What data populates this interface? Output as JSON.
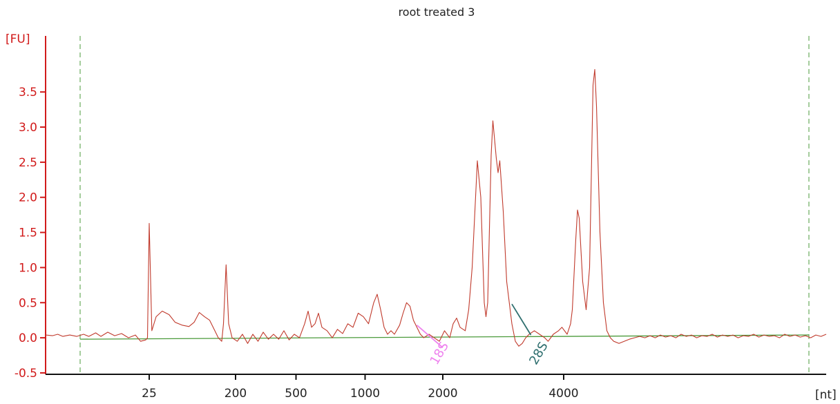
{
  "chart_data": {
    "type": "line",
    "title": "root treated 3",
    "ylabel": "[FU]",
    "xlabel": "[nt]",
    "ylim": [
      -0.52,
      4.2
    ],
    "yticks": [
      "-0.5",
      "0.0",
      "0.5",
      "1.0",
      "1.5",
      "2.0",
      "2.5",
      "3.0",
      "3.5"
    ],
    "xticks": [
      "25",
      "200",
      "500",
      "1000",
      "2000",
      "4000"
    ],
    "grid": false,
    "colors": {
      "trace": "#c0392b",
      "yaxis": "#d11a1a",
      "baseline": "#4a9a3a",
      "marker_lines": "#4a9a3a",
      "label_18s": "#ee82ee",
      "label_28s": "#2f6f6f"
    },
    "series": [
      {
        "values": [
          [
            0,
            0.04
          ],
          [
            8,
            0.03
          ],
          [
            14,
            0.05
          ],
          [
            20,
            0.02
          ],
          [
            28,
            0.04
          ],
          [
            36,
            0.02
          ],
          [
            44,
            0.05
          ],
          [
            50,
            0.02
          ],
          [
            58,
            0.07
          ],
          [
            64,
            0.02
          ],
          [
            72,
            0.08
          ],
          [
            80,
            0.03
          ],
          [
            88,
            0.06
          ],
          [
            96,
            0.0
          ],
          [
            104,
            0.04
          ],
          [
            110,
            -0.05
          ],
          [
            116,
            -0.03
          ],
          [
            118,
            0.0
          ],
          [
            120,
            1.63
          ],
          [
            123,
            0.1
          ],
          [
            128,
            0.3
          ],
          [
            135,
            0.38
          ],
          [
            143,
            0.33
          ],
          [
            150,
            0.22
          ],
          [
            158,
            0.18
          ],
          [
            166,
            0.16
          ],
          [
            172,
            0.22
          ],
          [
            178,
            0.36
          ],
          [
            184,
            0.3
          ],
          [
            190,
            0.25
          ],
          [
            196,
            0.1
          ],
          [
            200,
            0.0
          ],
          [
            204,
            -0.05
          ],
          [
            206,
            0.2
          ],
          [
            209,
            1.04
          ],
          [
            212,
            0.2
          ],
          [
            216,
            0.0
          ],
          [
            222,
            -0.05
          ],
          [
            228,
            0.05
          ],
          [
            234,
            -0.08
          ],
          [
            240,
            0.05
          ],
          [
            246,
            -0.05
          ],
          [
            252,
            0.08
          ],
          [
            258,
            -0.02
          ],
          [
            264,
            0.05
          ],
          [
            270,
            -0.02
          ],
          [
            276,
            0.1
          ],
          [
            282,
            -0.03
          ],
          [
            288,
            0.05
          ],
          [
            294,
            0.0
          ],
          [
            300,
            0.2
          ],
          [
            304,
            0.38
          ],
          [
            308,
            0.15
          ],
          [
            312,
            0.2
          ],
          [
            316,
            0.35
          ],
          [
            320,
            0.15
          ],
          [
            326,
            0.1
          ],
          [
            332,
            0.0
          ],
          [
            338,
            0.12
          ],
          [
            344,
            0.06
          ],
          [
            350,
            0.2
          ],
          [
            356,
            0.15
          ],
          [
            362,
            0.35
          ],
          [
            368,
            0.3
          ],
          [
            374,
            0.2
          ],
          [
            380,
            0.5
          ],
          [
            384,
            0.62
          ],
          [
            388,
            0.4
          ],
          [
            392,
            0.15
          ],
          [
            396,
            0.05
          ],
          [
            400,
            0.1
          ],
          [
            404,
            0.05
          ],
          [
            410,
            0.18
          ],
          [
            414,
            0.35
          ],
          [
            418,
            0.5
          ],
          [
            422,
            0.45
          ],
          [
            426,
            0.25
          ],
          [
            430,
            0.15
          ],
          [
            434,
            0.05
          ],
          [
            438,
            0.0
          ],
          [
            444,
            0.05
          ],
          [
            450,
            0.0
          ],
          [
            456,
            -0.05
          ],
          [
            462,
            0.1
          ],
          [
            468,
            0.0
          ],
          [
            472,
            0.2
          ],
          [
            476,
            0.28
          ],
          [
            480,
            0.15
          ],
          [
            486,
            0.1
          ],
          [
            490,
            0.4
          ],
          [
            494,
            1.0
          ],
          [
            500,
            2.52
          ],
          [
            504,
            2.0
          ],
          [
            508,
            0.5
          ],
          [
            510,
            0.3
          ],
          [
            512,
            0.5
          ],
          [
            516,
            2.6
          ],
          [
            518,
            3.09
          ],
          [
            522,
            2.55
          ],
          [
            524,
            2.35
          ],
          [
            526,
            2.52
          ],
          [
            530,
            1.8
          ],
          [
            534,
            0.8
          ],
          [
            540,
            0.2
          ],
          [
            544,
            -0.05
          ],
          [
            548,
            -0.12
          ],
          [
            552,
            -0.08
          ],
          [
            556,
            0.0
          ],
          [
            560,
            0.05
          ],
          [
            566,
            0.1
          ],
          [
            572,
            0.05
          ],
          [
            578,
            0.0
          ],
          [
            582,
            -0.05
          ],
          [
            588,
            0.05
          ],
          [
            594,
            0.1
          ],
          [
            598,
            0.15
          ],
          [
            604,
            0.05
          ],
          [
            608,
            0.2
          ],
          [
            610,
            0.4
          ],
          [
            614,
            1.4
          ],
          [
            616,
            1.82
          ],
          [
            618,
            1.7
          ],
          [
            622,
            0.8
          ],
          [
            626,
            0.4
          ],
          [
            630,
            1.0
          ],
          [
            634,
            3.6
          ],
          [
            636,
            3.82
          ],
          [
            638,
            3.3
          ],
          [
            642,
            1.5
          ],
          [
            646,
            0.5
          ],
          [
            650,
            0.1
          ],
          [
            654,
            0.0
          ],
          [
            658,
            -0.05
          ],
          [
            664,
            -0.08
          ],
          [
            670,
            -0.05
          ],
          [
            676,
            -0.02
          ],
          [
            682,
            0.0
          ],
          [
            688,
            0.02
          ],
          [
            694,
            0.0
          ],
          [
            700,
            0.03
          ],
          [
            706,
            0.0
          ],
          [
            712,
            0.04
          ],
          [
            718,
            0.01
          ],
          [
            724,
            0.03
          ],
          [
            730,
            0.0
          ],
          [
            736,
            0.05
          ],
          [
            742,
            0.02
          ],
          [
            748,
            0.04
          ],
          [
            754,
            0.0
          ],
          [
            760,
            0.03
          ],
          [
            766,
            0.02
          ],
          [
            772,
            0.05
          ],
          [
            778,
            0.01
          ],
          [
            784,
            0.04
          ],
          [
            790,
            0.02
          ],
          [
            796,
            0.04
          ],
          [
            802,
            0.0
          ],
          [
            808,
            0.03
          ],
          [
            814,
            0.02
          ],
          [
            820,
            0.05
          ],
          [
            826,
            0.01
          ],
          [
            832,
            0.04
          ],
          [
            838,
            0.02
          ],
          [
            844,
            0.03
          ],
          [
            850,
            0.0
          ],
          [
            856,
            0.05
          ],
          [
            862,
            0.02
          ],
          [
            868,
            0.04
          ],
          [
            874,
            0.01
          ],
          [
            880,
            0.03
          ],
          [
            886,
            0.0
          ],
          [
            892,
            0.04
          ],
          [
            898,
            0.02
          ],
          [
            904,
            0.05
          ]
        ]
      }
    ],
    "x_tick_positions": [
      120,
      220,
      290,
      370,
      460,
      600
    ],
    "x_range": [
      0,
      904
    ],
    "dashed_markers": [
      40,
      884
    ],
    "baseline": {
      "from": [
        40,
        -0.02
      ],
      "to": [
        884,
        0.04
      ]
    },
    "annotations": [
      {
        "label": "18S",
        "x": 460,
        "y": -0.25,
        "line_from": [
          430,
          0.18
        ],
        "line_to": [
          460,
          -0.14
        ],
        "color_key": "label_18s"
      },
      {
        "label": "28S",
        "x": 575,
        "y": -0.25,
        "line_from": [
          540,
          0.48
        ],
        "line_to": [
          562,
          0.04
        ],
        "color_key": "label_28s"
      }
    ]
  }
}
